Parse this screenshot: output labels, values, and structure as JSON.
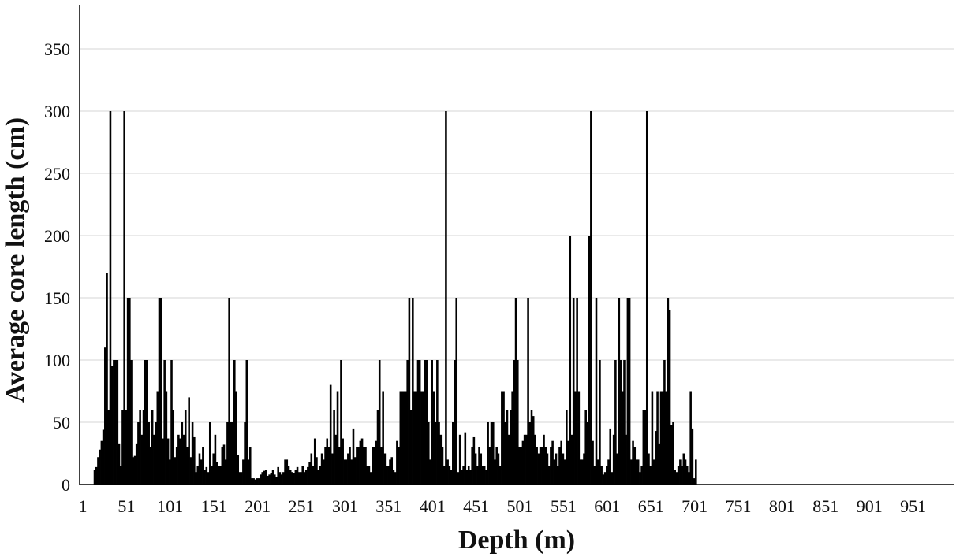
{
  "chart_data": {
    "type": "bar",
    "title": "",
    "xlabel": "Depth (m)",
    "ylabel": "Average core length (cm)",
    "ylim": [
      0,
      375
    ],
    "yticks": [
      0,
      50,
      100,
      150,
      200,
      250,
      300,
      350
    ],
    "xlim": [
      1,
      1001
    ],
    "xticks": [
      1,
      51,
      101,
      151,
      201,
      251,
      301,
      351,
      401,
      451,
      501,
      551,
      601,
      651,
      701,
      751,
      801,
      851,
      901,
      951
    ],
    "grid": true,
    "bar_color": "#000000",
    "series": [
      {
        "depth_start": 17,
        "depth_step": 2,
        "values": [
          12,
          14,
          22,
          28,
          35,
          44,
          110,
          170,
          60,
          300,
          95,
          100,
          100,
          100,
          33,
          15,
          60,
          300,
          60,
          150,
          150,
          100,
          22,
          23,
          33,
          50,
          60,
          40,
          60,
          100,
          100,
          50,
          30,
          60,
          40,
          50,
          75,
          150,
          150,
          37,
          100,
          75,
          37,
          20,
          100,
          60,
          22,
          30,
          40,
          37,
          50,
          40,
          60,
          30,
          70,
          22,
          50,
          38,
          10,
          15,
          25,
          20,
          30,
          12,
          14,
          10,
          50,
          15,
          25,
          40,
          18,
          15,
          15,
          30,
          32,
          20,
          50,
          150,
          50,
          50,
          100,
          75,
          24,
          10,
          10,
          20,
          50,
          100,
          20,
          30,
          5,
          5,
          4,
          5,
          5,
          8,
          10,
          11,
          12,
          7,
          8,
          9,
          12,
          8,
          6,
          14,
          10,
          8,
          10,
          20,
          20,
          15,
          12,
          10,
          9,
          12,
          14,
          10,
          10,
          15,
          10,
          12,
          14,
          18,
          25,
          15,
          37,
          22,
          12,
          15,
          25,
          20,
          30,
          37,
          30,
          80,
          25,
          60,
          40,
          75,
          30,
          100,
          37,
          20,
          20,
          25,
          30,
          20,
          45,
          22,
          30,
          30,
          35,
          37,
          30,
          30,
          15,
          15,
          10,
          30,
          30,
          35,
          60,
          100,
          30,
          75,
          25,
          15,
          15,
          20,
          22,
          12,
          10,
          35,
          30,
          75,
          75,
          75,
          75,
          100,
          150,
          60,
          150,
          75,
          75,
          100,
          100,
          75,
          75,
          100,
          100,
          50,
          20,
          100,
          75,
          50,
          100,
          50,
          40,
          30,
          15,
          300,
          20,
          15,
          12,
          50,
          100,
          150,
          10,
          40,
          12,
          15,
          42,
          12,
          15,
          12,
          30,
          38,
          25,
          15,
          30,
          25,
          15,
          15,
          12,
          50,
          30,
          50,
          50,
          20,
          30,
          25,
          15,
          75,
          75,
          50,
          60,
          40,
          60,
          75,
          100,
          150,
          100,
          30,
          30,
          35,
          40,
          40,
          150,
          50,
          60,
          55,
          40,
          30,
          25,
          30,
          30,
          40,
          30,
          25,
          15,
          30,
          35,
          20,
          25,
          15,
          30,
          35,
          25,
          20,
          60,
          35,
          200,
          40,
          150,
          75,
          150,
          75,
          20,
          20,
          25,
          60,
          50,
          200,
          300,
          35,
          15,
          150,
          20,
          100,
          15,
          8,
          10,
          15,
          20,
          45,
          10,
          40,
          100,
          25,
          150,
          100,
          75,
          100,
          40,
          150,
          150,
          20,
          35,
          30,
          20,
          20,
          10,
          15,
          60,
          60,
          300,
          25,
          15,
          75,
          20,
          43,
          75,
          33,
          75,
          75,
          100,
          75,
          150,
          140,
          48,
          50,
          12,
          10,
          15,
          20,
          15,
          25,
          20,
          15,
          10,
          75,
          45,
          5,
          20
        ]
      }
    ]
  }
}
